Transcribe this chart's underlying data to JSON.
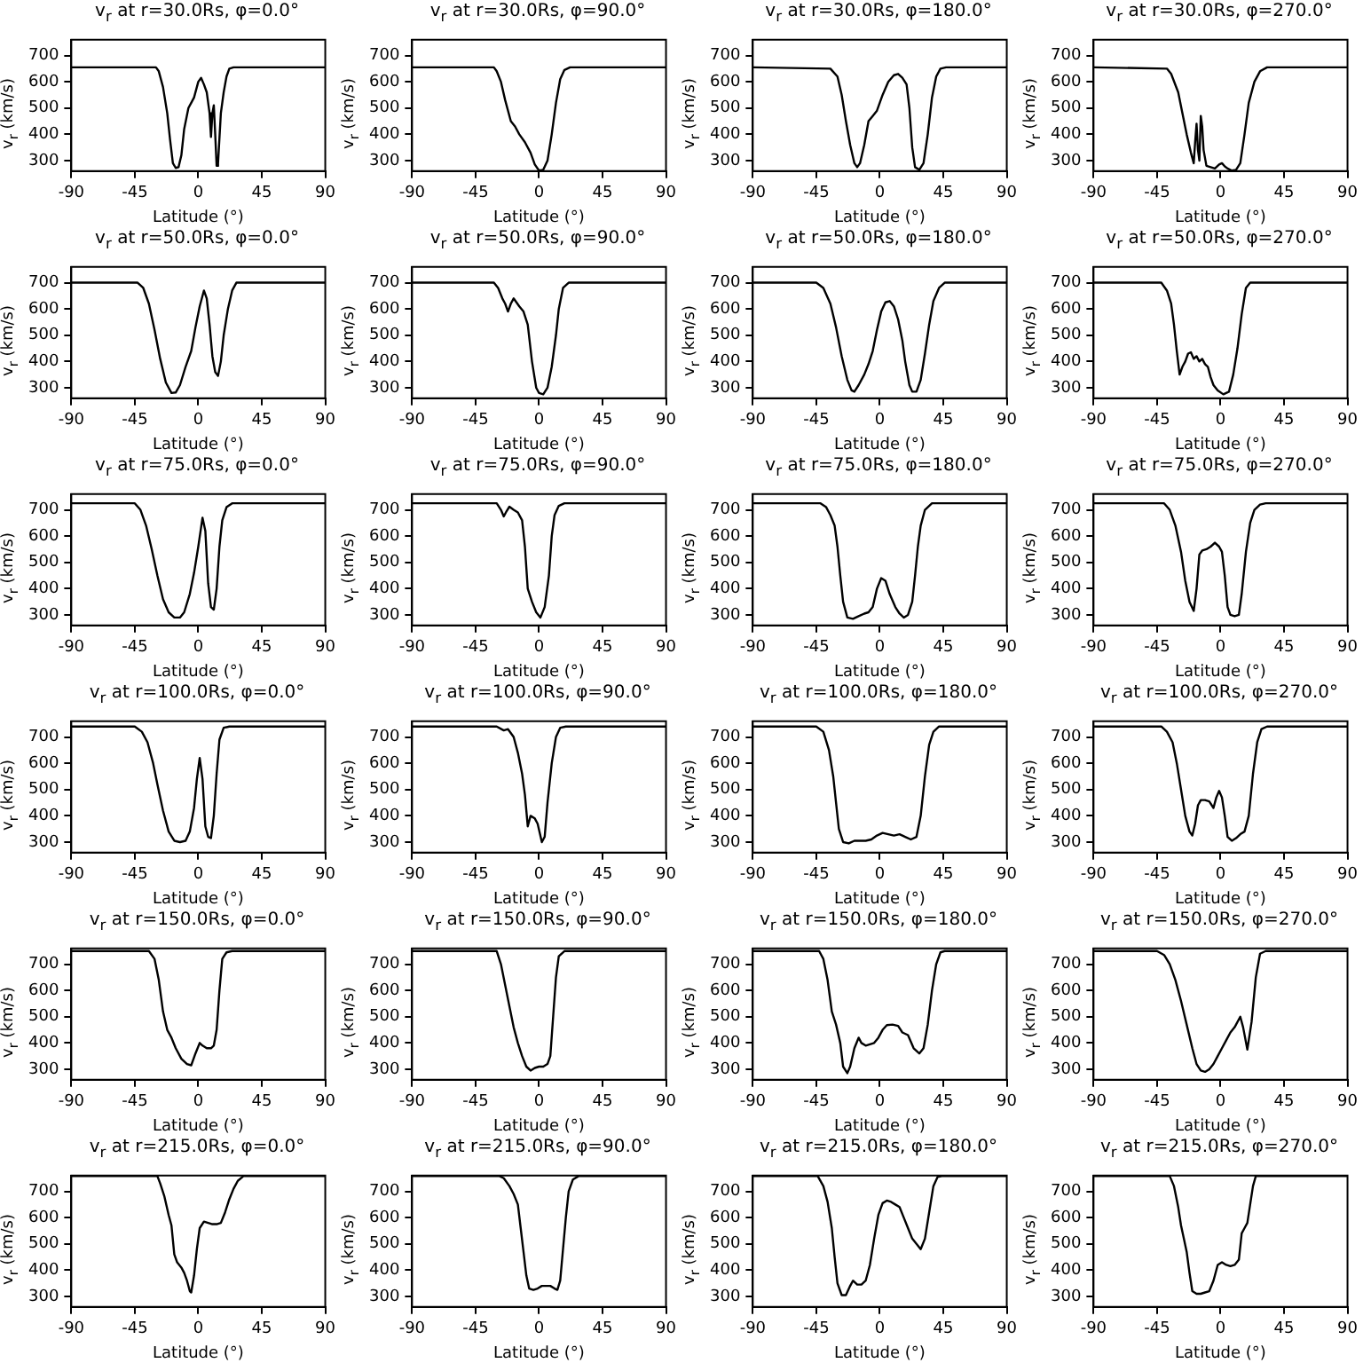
{
  "chart_data": [
    {
      "type": "line",
      "title": "v$_{r}$ at r=30.0Rs, φ=0.0°",
      "xlabel": "Latitude (°)",
      "ylabel": "v$_{r}$ (km/s)",
      "color": "#000000",
      "xlim": [
        -90,
        90
      ],
      "xticks": [
        -90,
        -45,
        0,
        45,
        90
      ],
      "ylim": [
        260,
        760
      ],
      "yticks": [
        300,
        400,
        500,
        600,
        700
      ],
      "x": [
        -90,
        -30,
        -28,
        -25,
        -22,
        -20,
        -18,
        -16,
        -14,
        -12,
        -10,
        -7,
        -5,
        -3,
        0,
        2,
        4,
        6,
        8,
        9,
        10,
        11,
        12,
        13,
        14,
        16,
        18,
        20,
        22,
        25,
        90
      ],
      "values": [
        655,
        655,
        640,
        580,
        480,
        380,
        290,
        272,
        275,
        320,
        420,
        500,
        520,
        540,
        600,
        615,
        590,
        560,
        480,
        390,
        480,
        510,
        400,
        280,
        290,
        480,
        560,
        620,
        650,
        655,
        655
      ]
    },
    {
      "type": "line",
      "title": "v$_{r}$ at r=30.0Rs, φ=90.0°",
      "xlabel": "Latitude (°)",
      "ylabel": "v$_{r}$ (km/s)",
      "color": "#000000",
      "xlim": [
        -90,
        90
      ],
      "xticks": [
        -90,
        -45,
        0,
        45,
        90
      ],
      "ylim": [
        260,
        760
      ],
      "yticks": [
        300,
        400,
        500,
        600,
        700
      ],
      "x": [
        -90,
        -32,
        -30,
        -27,
        -24,
        -20,
        -17,
        -14,
        -10,
        -6,
        -3,
        0,
        3,
        6,
        9,
        12,
        15,
        18,
        22,
        90
      ],
      "values": [
        655,
        655,
        640,
        600,
        530,
        450,
        430,
        400,
        370,
        330,
        285,
        262,
        265,
        300,
        400,
        520,
        610,
        645,
        655,
        655
      ]
    },
    {
      "type": "line",
      "title": "v$_{r}$ at r=30.0Rs, φ=180.0°",
      "xlabel": "Latitude (°)",
      "ylabel": "v$_{r}$ (km/s)",
      "color": "#000000",
      "xlim": [
        -90,
        90
      ],
      "xticks": [
        -90,
        -45,
        0,
        45,
        90
      ],
      "ylim": [
        260,
        760
      ],
      "yticks": [
        300,
        400,
        500,
        600,
        700
      ],
      "x": [
        -90,
        -35,
        -30,
        -27,
        -24,
        -21,
        -18,
        -16,
        -14,
        -11,
        -8,
        -5,
        -2,
        2,
        6,
        10,
        13,
        16,
        19,
        21,
        23,
        25,
        28,
        31,
        34,
        37,
        40,
        43,
        47,
        90
      ],
      "values": [
        655,
        650,
        620,
        550,
        450,
        360,
        290,
        275,
        290,
        360,
        450,
        470,
        490,
        550,
        600,
        625,
        630,
        615,
        590,
        500,
        350,
        275,
        265,
        290,
        400,
        540,
        620,
        650,
        655,
        655
      ]
    },
    {
      "type": "line",
      "title": "v$_{r}$ at r=30.0Rs, φ=270.0°",
      "xlabel": "Latitude (°)",
      "ylabel": "v$_{r}$ (km/s)",
      "color": "#000000",
      "xlim": [
        -90,
        90
      ],
      "xticks": [
        -90,
        -45,
        0,
        45,
        90
      ],
      "ylim": [
        260,
        760
      ],
      "yticks": [
        300,
        400,
        500,
        600,
        700
      ],
      "x": [
        -90,
        -38,
        -35,
        -30,
        -27,
        -24,
        -21,
        -19,
        -18,
        -17,
        -16,
        -15,
        -14,
        -13,
        -12,
        -10,
        -7,
        -4,
        -1,
        1,
        3,
        5,
        8,
        11,
        14,
        17,
        20,
        24,
        28,
        33,
        90
      ],
      "values": [
        655,
        650,
        630,
        560,
        480,
        400,
        330,
        290,
        370,
        440,
        340,
        300,
        470,
        430,
        340,
        280,
        275,
        270,
        285,
        290,
        278,
        270,
        262,
        265,
        290,
        400,
        520,
        600,
        640,
        655,
        655
      ]
    },
    {
      "type": "line",
      "title": "v$_{r}$ at r=50.0Rs, φ=0.0°",
      "xlabel": "Latitude (°)",
      "ylabel": "v$_{r}$ (km/s)",
      "color": "#000000",
      "xlim": [
        -90,
        90
      ],
      "xticks": [
        -90,
        -45,
        0,
        45,
        90
      ],
      "ylim": [
        260,
        760
      ],
      "yticks": [
        300,
        400,
        500,
        600,
        700
      ],
      "x": [
        -90,
        -43,
        -39,
        -35,
        -31,
        -27,
        -23,
        -19,
        -16,
        -13,
        -9,
        -5,
        -2,
        1,
        4,
        6,
        8,
        10,
        12,
        14,
        16,
        18,
        21,
        24,
        27,
        90
      ],
      "values": [
        700,
        700,
        680,
        620,
        520,
        410,
        320,
        280,
        282,
        310,
        380,
        440,
        530,
        610,
        670,
        640,
        540,
        420,
        360,
        345,
        400,
        500,
        600,
        670,
        700,
        700
      ]
    },
    {
      "type": "line",
      "title": "v$_{r}$ at r=50.0Rs, φ=90.0°",
      "xlabel": "Latitude (°)",
      "ylabel": "v$_{r}$ (km/s)",
      "color": "#000000",
      "xlim": [
        -90,
        90
      ],
      "xticks": [
        -90,
        -45,
        0,
        45,
        90
      ],
      "ylim": [
        260,
        760
      ],
      "yticks": [
        300,
        400,
        500,
        600,
        700
      ],
      "x": [
        -90,
        -32,
        -29,
        -26,
        -24,
        -22,
        -20,
        -18,
        -16,
        -14,
        -11,
        -8,
        -5,
        -2,
        0,
        3,
        6,
        9,
        12,
        14,
        17,
        21,
        90
      ],
      "values": [
        700,
        700,
        680,
        640,
        620,
        590,
        620,
        640,
        625,
        610,
        590,
        540,
        400,
        300,
        280,
        275,
        300,
        380,
        500,
        600,
        680,
        700,
        700
      ]
    },
    {
      "type": "line",
      "title": "v$_{r}$ at r=50.0Rs, φ=180.0°",
      "xlabel": "Latitude (°)",
      "ylabel": "v$_{r}$ (km/s)",
      "color": "#000000",
      "xlim": [
        -90,
        90
      ],
      "xticks": [
        -90,
        -45,
        0,
        45,
        90
      ],
      "ylim": [
        260,
        760
      ],
      "yticks": [
        300,
        400,
        500,
        600,
        700
      ],
      "x": [
        -90,
        -45,
        -40,
        -35,
        -31,
        -27,
        -23,
        -20,
        -18,
        -15,
        -11,
        -8,
        -5,
        -2,
        1,
        4,
        7,
        10,
        13,
        16,
        18,
        21,
        23,
        26,
        29,
        32,
        35,
        38,
        42,
        46,
        90
      ],
      "values": [
        700,
        700,
        680,
        620,
        530,
        420,
        330,
        290,
        285,
        310,
        350,
        390,
        440,
        520,
        590,
        625,
        630,
        610,
        560,
        480,
        400,
        310,
        285,
        285,
        330,
        430,
        540,
        630,
        680,
        700,
        700
      ]
    },
    {
      "type": "line",
      "title": "v$_{r}$ at r=50.0Rs, φ=270.0°",
      "xlabel": "Latitude (°)",
      "ylabel": "v$_{r}$ (km/s)",
      "color": "#000000",
      "xlim": [
        -90,
        90
      ],
      "xticks": [
        -90,
        -45,
        0,
        45,
        90
      ],
      "ylim": [
        260,
        760
      ],
      "yticks": [
        300,
        400,
        500,
        600,
        700
      ],
      "x": [
        -90,
        -42,
        -38,
        -35,
        -33,
        -31,
        -29,
        -27,
        -25,
        -23,
        -21,
        -19,
        -17,
        -15,
        -13,
        -11,
        -9,
        -7,
        -5,
        -2,
        2,
        6,
        9,
        12,
        15,
        18,
        21,
        90
      ],
      "values": [
        700,
        700,
        670,
        620,
        540,
        440,
        350,
        380,
        400,
        430,
        435,
        410,
        420,
        400,
        410,
        390,
        380,
        340,
        310,
        290,
        275,
        285,
        350,
        450,
        580,
        680,
        700,
        700
      ]
    },
    {
      "type": "line",
      "title": "v$_{r}$ at r=75.0Rs, φ=0.0°",
      "xlabel": "Latitude (°)",
      "ylabel": "v$_{r}$ (km/s)",
      "color": "#000000",
      "xlim": [
        -90,
        90
      ],
      "xticks": [
        -90,
        -45,
        0,
        45,
        90
      ],
      "ylim": [
        260,
        760
      ],
      "yticks": [
        300,
        400,
        500,
        600,
        700
      ],
      "x": [
        -90,
        -45,
        -41,
        -37,
        -33,
        -29,
        -25,
        -21,
        -17,
        -13,
        -10,
        -6,
        -3,
        0,
        3,
        5,
        7,
        9,
        11,
        13,
        15,
        17,
        20,
        24,
        90
      ],
      "values": [
        725,
        725,
        700,
        640,
        550,
        450,
        360,
        310,
        290,
        290,
        310,
        380,
        460,
        560,
        670,
        620,
        420,
        330,
        320,
        400,
        560,
        660,
        710,
        725,
        725
      ]
    },
    {
      "type": "line",
      "title": "v$_{r}$ at r=75.0Rs, φ=90.0°",
      "xlabel": "Latitude (°)",
      "ylabel": "v$_{r}$ (km/s)",
      "color": "#000000",
      "xlim": [
        -90,
        90
      ],
      "xticks": [
        -90,
        -45,
        0,
        45,
        90
      ],
      "ylim": [
        260,
        760
      ],
      "yticks": [
        300,
        400,
        500,
        600,
        700
      ],
      "x": [
        -90,
        -30,
        -27,
        -25,
        -23,
        -21,
        -18,
        -15,
        -12,
        -10,
        -8,
        -5,
        -2,
        1,
        4,
        7,
        9,
        11,
        14,
        18,
        90
      ],
      "values": [
        725,
        725,
        700,
        675,
        695,
        712,
        700,
        690,
        660,
        560,
        400,
        350,
        310,
        290,
        330,
        450,
        600,
        680,
        715,
        725,
        725
      ]
    },
    {
      "type": "line",
      "title": "v$_{r}$ at r=75.0Rs, φ=180.0°",
      "xlabel": "Latitude (°)",
      "ylabel": "v$_{r}$ (km/s)",
      "color": "#000000",
      "xlim": [
        -90,
        90
      ],
      "xticks": [
        -90,
        -45,
        0,
        45,
        90
      ],
      "ylim": [
        260,
        760
      ],
      "yticks": [
        300,
        400,
        500,
        600,
        700
      ],
      "x": [
        -90,
        -42,
        -38,
        -35,
        -32,
        -30,
        -28,
        -26,
        -23,
        -19,
        -15,
        -11,
        -8,
        -5,
        -2,
        1,
        4,
        7,
        11,
        14,
        17,
        20,
        23,
        25,
        27,
        29,
        32,
        37,
        90
      ],
      "values": [
        725,
        725,
        710,
        680,
        640,
        560,
        450,
        350,
        290,
        285,
        295,
        305,
        310,
        330,
        400,
        440,
        430,
        380,
        330,
        305,
        290,
        300,
        350,
        450,
        560,
        640,
        700,
        725,
        725
      ]
    },
    {
      "type": "line",
      "title": "v$_{r}$ at r=75.0Rs, φ=270.0°",
      "xlabel": "Latitude (°)",
      "ylabel": "v$_{r}$ (km/s)",
      "color": "#000000",
      "xlim": [
        -90,
        90
      ],
      "xticks": [
        -90,
        -45,
        0,
        45,
        90
      ],
      "ylim": [
        260,
        760
      ],
      "yticks": [
        300,
        400,
        500,
        600,
        700
      ],
      "x": [
        -90,
        -40,
        -36,
        -32,
        -28,
        -25,
        -22,
        -19,
        -17,
        -15,
        -13,
        -10,
        -7,
        -4,
        -1,
        1,
        3,
        5,
        7,
        10,
        13,
        15,
        18,
        21,
        24,
        28,
        32,
        90
      ],
      "values": [
        725,
        725,
        700,
        640,
        540,
        430,
        350,
        315,
        400,
        530,
        545,
        550,
        560,
        575,
        560,
        540,
        450,
        330,
        300,
        295,
        300,
        380,
        540,
        650,
        700,
        720,
        725,
        725
      ]
    },
    {
      "type": "line",
      "title": "v$_{r}$ at r=100.0Rs, φ=0.0°",
      "xlabel": "Latitude (°)",
      "ylabel": "v$_{r}$ (km/s)",
      "color": "#000000",
      "xlim": [
        -90,
        90
      ],
      "xticks": [
        -90,
        -45,
        0,
        45,
        90
      ],
      "ylim": [
        260,
        760
      ],
      "yticks": [
        300,
        400,
        500,
        600,
        700
      ],
      "x": [
        -90,
        -45,
        -40,
        -36,
        -32,
        -29,
        -25,
        -21,
        -17,
        -13,
        -9,
        -6,
        -3,
        -1,
        1,
        3,
        5,
        7,
        9,
        11,
        13,
        15,
        18,
        22,
        90
      ],
      "values": [
        740,
        740,
        720,
        680,
        600,
        520,
        420,
        340,
        305,
        300,
        305,
        340,
        430,
        540,
        620,
        540,
        360,
        320,
        315,
        400,
        560,
        690,
        735,
        740,
        740
      ]
    },
    {
      "type": "line",
      "title": "v$_{r}$ at r=100.0Rs, φ=90.0°",
      "xlabel": "Latitude (°)",
      "ylabel": "v$_{r}$ (km/s)",
      "color": "#000000",
      "xlim": [
        -90,
        90
      ],
      "xticks": [
        -90,
        -45,
        0,
        45,
        90
      ],
      "ylim": [
        260,
        760
      ],
      "yticks": [
        300,
        400,
        500,
        600,
        700
      ],
      "x": [
        -90,
        -30,
        -25,
        -22,
        -18,
        -15,
        -12,
        -10,
        -8,
        -6,
        -3,
        -1,
        2,
        4,
        6,
        9,
        12,
        15,
        19,
        90
      ],
      "values": [
        740,
        740,
        725,
        730,
        700,
        640,
        560,
        480,
        360,
        400,
        390,
        370,
        300,
        320,
        450,
        600,
        700,
        735,
        740,
        740
      ]
    },
    {
      "type": "line",
      "title": "v$_{r}$ at r=100.0Rs, φ=180.0°",
      "xlabel": "Latitude (°)",
      "ylabel": "v$_{r}$ (km/s)",
      "color": "#000000",
      "xlim": [
        -90,
        90
      ],
      "xticks": [
        -90,
        -45,
        0,
        45,
        90
      ],
      "ylim": [
        260,
        760
      ],
      "yticks": [
        300,
        400,
        500,
        600,
        700
      ],
      "x": [
        -90,
        -45,
        -40,
        -36,
        -33,
        -31,
        -29,
        -26,
        -22,
        -18,
        -10,
        -6,
        -2,
        2,
        6,
        10,
        14,
        18,
        22,
        26,
        29,
        32,
        35,
        38,
        42,
        90
      ],
      "values": [
        740,
        740,
        720,
        650,
        550,
        450,
        350,
        300,
        295,
        305,
        305,
        310,
        325,
        335,
        330,
        325,
        330,
        320,
        310,
        320,
        400,
        550,
        670,
        720,
        740,
        740
      ]
    },
    {
      "type": "line",
      "title": "v$_{r}$ at r=100.0Rs, φ=270.0°",
      "xlabel": "Latitude (°)",
      "ylabel": "v$_{r}$ (km/s)",
      "color": "#000000",
      "xlim": [
        -90,
        90
      ],
      "xticks": [
        -90,
        -45,
        0,
        45,
        90
      ],
      "ylim": [
        260,
        760
      ],
      "yticks": [
        300,
        400,
        500,
        600,
        700
      ],
      "x": [
        -90,
        -42,
        -38,
        -34,
        -31,
        -28,
        -25,
        -22,
        -20,
        -18,
        -16,
        -14,
        -11,
        -8,
        -5,
        -3,
        -1,
        1,
        3,
        5,
        8,
        11,
        14,
        17,
        20,
        23,
        26,
        29,
        33,
        90
      ],
      "values": [
        740,
        740,
        720,
        680,
        600,
        500,
        400,
        340,
        325,
        370,
        440,
        460,
        460,
        455,
        430,
        470,
        495,
        470,
        400,
        320,
        305,
        315,
        330,
        340,
        400,
        560,
        680,
        730,
        740,
        740
      ]
    },
    {
      "type": "line",
      "title": "v$_{r}$ at r=150.0Rs, φ=0.0°",
      "xlabel": "Latitude (°)",
      "ylabel": "v$_{r}$ (km/s)",
      "color": "#000000",
      "xlim": [
        -90,
        90
      ],
      "xticks": [
        -90,
        -45,
        0,
        45,
        90
      ],
      "ylim": [
        260,
        760
      ],
      "yticks": [
        300,
        400,
        500,
        600,
        700
      ],
      "x": [
        -90,
        -35,
        -31,
        -28,
        -25,
        -22,
        -19,
        -16,
        -12,
        -8,
        -5,
        -2,
        1,
        3,
        6,
        9,
        11,
        13,
        15,
        17,
        20,
        24,
        90
      ],
      "values": [
        750,
        750,
        720,
        640,
        520,
        450,
        420,
        380,
        340,
        320,
        315,
        360,
        400,
        390,
        380,
        380,
        390,
        450,
        600,
        720,
        745,
        750,
        750
      ]
    },
    {
      "type": "line",
      "title": "v$_{r}$ at r=150.0Rs, φ=90.0°",
      "xlabel": "Latitude (°)",
      "ylabel": "v$_{r}$ (km/s)",
      "color": "#000000",
      "xlim": [
        -90,
        90
      ],
      "xticks": [
        -90,
        -45,
        0,
        45,
        90
      ],
      "ylim": [
        260,
        760
      ],
      "yticks": [
        300,
        400,
        500,
        600,
        700
      ],
      "x": [
        -90,
        -30,
        -27,
        -24,
        -21,
        -18,
        -15,
        -12,
        -9,
        -6,
        -3,
        0,
        3,
        6,
        8,
        10,
        12,
        14,
        18,
        90
      ],
      "values": [
        750,
        750,
        700,
        620,
        540,
        460,
        400,
        350,
        310,
        295,
        305,
        310,
        310,
        320,
        350,
        500,
        650,
        730,
        750,
        750
      ]
    },
    {
      "type": "line",
      "title": "v$_{r}$ at r=150.0Rs, φ=180.0°",
      "xlabel": "Latitude (°)",
      "ylabel": "v$_{r}$ (km/s)",
      "color": "#000000",
      "xlim": [
        -90,
        90
      ],
      "xticks": [
        -90,
        -45,
        0,
        45,
        90
      ],
      "ylim": [
        260,
        760
      ],
      "yticks": [
        300,
        400,
        500,
        600,
        700
      ],
      "x": [
        -90,
        -43,
        -40,
        -37,
        -34,
        -31,
        -28,
        -26,
        -23,
        -21,
        -18,
        -15,
        -13,
        -10,
        -7,
        -4,
        -1,
        2,
        5,
        9,
        13,
        16,
        20,
        24,
        28,
        31,
        34,
        37,
        40,
        43,
        46,
        90
      ],
      "values": [
        750,
        750,
        720,
        640,
        520,
        470,
        400,
        310,
        285,
        310,
        380,
        420,
        400,
        390,
        395,
        400,
        420,
        450,
        468,
        470,
        465,
        440,
        430,
        380,
        360,
        380,
        470,
        600,
        700,
        745,
        750,
        750
      ]
    },
    {
      "type": "line",
      "title": "v$_{r}$ at r=150.0Rs, φ=270.0°",
      "xlabel": "Latitude (°)",
      "ylabel": "v$_{r}$ (km/s)",
      "color": "#000000",
      "xlim": [
        -90,
        90
      ],
      "xticks": [
        -90,
        -45,
        0,
        45,
        90
      ],
      "ylim": [
        260,
        760
      ],
      "yticks": [
        300,
        400,
        500,
        600,
        700
      ],
      "x": [
        -90,
        -45,
        -40,
        -36,
        -32,
        -28,
        -24,
        -20,
        -17,
        -14,
        -11,
        -8,
        -5,
        -2,
        1,
        4,
        7,
        10,
        14,
        16,
        19,
        22,
        25,
        28,
        32,
        90
      ],
      "values": [
        750,
        750,
        735,
        700,
        640,
        560,
        470,
        380,
        320,
        295,
        290,
        300,
        320,
        350,
        380,
        410,
        440,
        460,
        500,
        460,
        375,
        480,
        650,
        740,
        750,
        750
      ]
    },
    {
      "type": "line",
      "title": "v$_{r}$ at r=215.0Rs, φ=0.0°",
      "xlabel": "Latitude (°)",
      "ylabel": "v$_{r}$ (km/s)",
      "color": "#000000",
      "xlim": [
        -90,
        90
      ],
      "xticks": [
        -90,
        -45,
        0,
        45,
        90
      ],
      "ylim": [
        260,
        760
      ],
      "yticks": [
        300,
        400,
        500,
        600,
        700
      ],
      "x": [
        -90,
        -29,
        -27,
        -24,
        -21,
        -19,
        -17,
        -15,
        -12,
        -10,
        -8,
        -6,
        -5,
        -3,
        -1,
        1,
        4,
        7,
        10,
        13,
        16,
        19,
        22,
        25,
        28,
        32,
        90
      ],
      "values": [
        758,
        758,
        730,
        680,
        610,
        570,
        460,
        430,
        410,
        390,
        360,
        320,
        315,
        380,
        480,
        560,
        585,
        580,
        575,
        575,
        580,
        620,
        670,
        710,
        740,
        758,
        758
      ]
    },
    {
      "type": "line",
      "title": "v$_{r}$ at r=215.0Rs, φ=90.0°",
      "xlabel": "Latitude (°)",
      "ylabel": "v$_{r}$ (km/s)",
      "color": "#000000",
      "xlim": [
        -90,
        90
      ],
      "xticks": [
        -90,
        -45,
        0,
        45,
        90
      ],
      "ylim": [
        260,
        760
      ],
      "yticks": [
        300,
        400,
        500,
        600,
        700
      ],
      "x": [
        -90,
        -28,
        -25,
        -21,
        -18,
        -15,
        -13,
        -11,
        -9,
        -7,
        -4,
        -1,
        2,
        5,
        8,
        11,
        13,
        15,
        17,
        19,
        21,
        24,
        28,
        90
      ],
      "values": [
        758,
        758,
        750,
        720,
        690,
        650,
        560,
        470,
        380,
        330,
        325,
        330,
        340,
        340,
        340,
        330,
        325,
        360,
        480,
        600,
        700,
        745,
        758,
        758
      ]
    },
    {
      "type": "line",
      "title": "v$_{r}$ at r=215.0Rs, φ=180.0°",
      "xlabel": "Latitude (°)",
      "ylabel": "v$_{r}$ (km/s)",
      "color": "#000000",
      "xlim": [
        -90,
        90
      ],
      "xticks": [
        -90,
        -45,
        0,
        45,
        90
      ],
      "ylim": [
        260,
        760
      ],
      "yticks": [
        300,
        400,
        500,
        600,
        700
      ],
      "x": [
        -90,
        -44,
        -40,
        -37,
        -34,
        -32,
        -30,
        -27,
        -24,
        -21,
        -19,
        -16,
        -13,
        -10,
        -7,
        -4,
        -1,
        2,
        5,
        8,
        11,
        14,
        17,
        20,
        23,
        26,
        29,
        32,
        35,
        38,
        41,
        44,
        90
      ],
      "values": [
        758,
        758,
        720,
        660,
        560,
        450,
        350,
        305,
        305,
        340,
        360,
        345,
        345,
        360,
        420,
        520,
        610,
        655,
        665,
        660,
        650,
        640,
        600,
        560,
        520,
        500,
        480,
        520,
        620,
        720,
        755,
        758,
        758
      ]
    },
    {
      "type": "line",
      "title": "v$_{r}$ at r=215.0Rs, φ=270.0°",
      "xlabel": "Latitude (°)",
      "ylabel": "v$_{r}$ (km/s)",
      "color": "#000000",
      "xlim": [
        -90,
        90
      ],
      "xticks": [
        -90,
        -45,
        0,
        45,
        90
      ],
      "ylim": [
        260,
        760
      ],
      "yticks": [
        300,
        400,
        500,
        600,
        700
      ],
      "x": [
        -90,
        -36,
        -33,
        -30,
        -28,
        -26,
        -24,
        -22,
        -20,
        -17,
        -14,
        -11,
        -8,
        -5,
        -2,
        1,
        4,
        7,
        10,
        13,
        15,
        17,
        19,
        21,
        23,
        25,
        90
      ],
      "values": [
        758,
        758,
        720,
        640,
        570,
        520,
        470,
        390,
        320,
        310,
        310,
        315,
        320,
        360,
        420,
        430,
        420,
        415,
        420,
        440,
        540,
        560,
        580,
        650,
        720,
        758,
        758
      ]
    }
  ]
}
